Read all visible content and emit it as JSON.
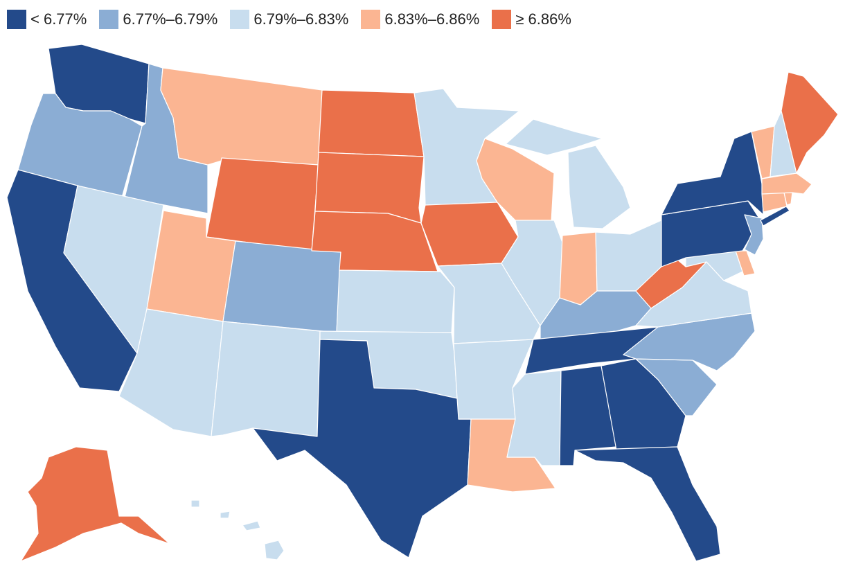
{
  "legend": {
    "items": [
      {
        "label": "< 6.77%",
        "color": "#234a8a"
      },
      {
        "label": "6.77%–6.79%",
        "color": "#8badd4"
      },
      {
        "label": "6.79%–6.83%",
        "color": "#c8ddee"
      },
      {
        "label": "6.83%–6.86%",
        "color": "#fbb592"
      },
      {
        "label": "≥ 6.86%",
        "color": "#ea704a"
      }
    ]
  },
  "states": [
    {
      "abbr": "WA",
      "bin": 0
    },
    {
      "abbr": "OR",
      "bin": 1
    },
    {
      "abbr": "CA",
      "bin": 0
    },
    {
      "abbr": "ID",
      "bin": 1
    },
    {
      "abbr": "NV",
      "bin": 2
    },
    {
      "abbr": "MT",
      "bin": 3
    },
    {
      "abbr": "WY",
      "bin": 4
    },
    {
      "abbr": "UT",
      "bin": 3
    },
    {
      "abbr": "AZ",
      "bin": 2
    },
    {
      "abbr": "CO",
      "bin": 1
    },
    {
      "abbr": "NM",
      "bin": 2
    },
    {
      "abbr": "ND",
      "bin": 4
    },
    {
      "abbr": "SD",
      "bin": 4
    },
    {
      "abbr": "NE",
      "bin": 4
    },
    {
      "abbr": "KS",
      "bin": 2
    },
    {
      "abbr": "OK",
      "bin": 2
    },
    {
      "abbr": "TX",
      "bin": 0
    },
    {
      "abbr": "MN",
      "bin": 2
    },
    {
      "abbr": "IA",
      "bin": 4
    },
    {
      "abbr": "MO",
      "bin": 2
    },
    {
      "abbr": "AR",
      "bin": 2
    },
    {
      "abbr": "LA",
      "bin": 3
    },
    {
      "abbr": "WI",
      "bin": 3
    },
    {
      "abbr": "IL",
      "bin": 2
    },
    {
      "abbr": "MI",
      "bin": 2
    },
    {
      "abbr": "IN",
      "bin": 3
    },
    {
      "abbr": "OH",
      "bin": 2
    },
    {
      "abbr": "KY",
      "bin": 1
    },
    {
      "abbr": "TN",
      "bin": 0
    },
    {
      "abbr": "MS",
      "bin": 2
    },
    {
      "abbr": "AL",
      "bin": 0
    },
    {
      "abbr": "GA",
      "bin": 0
    },
    {
      "abbr": "FL",
      "bin": 0
    },
    {
      "abbr": "SC",
      "bin": 1
    },
    {
      "abbr": "NC",
      "bin": 1
    },
    {
      "abbr": "VA",
      "bin": 2
    },
    {
      "abbr": "WV",
      "bin": 4
    },
    {
      "abbr": "MD",
      "bin": 2
    },
    {
      "abbr": "DE",
      "bin": 3
    },
    {
      "abbr": "PA",
      "bin": 0
    },
    {
      "abbr": "NJ",
      "bin": 1
    },
    {
      "abbr": "NY",
      "bin": 0
    },
    {
      "abbr": "CT",
      "bin": 3
    },
    {
      "abbr": "RI",
      "bin": 3
    },
    {
      "abbr": "MA",
      "bin": 3
    },
    {
      "abbr": "VT",
      "bin": 3
    },
    {
      "abbr": "NH",
      "bin": 2
    },
    {
      "abbr": "ME",
      "bin": 4
    },
    {
      "abbr": "AK",
      "bin": 4
    },
    {
      "abbr": "HI",
      "bin": 2
    }
  ]
}
